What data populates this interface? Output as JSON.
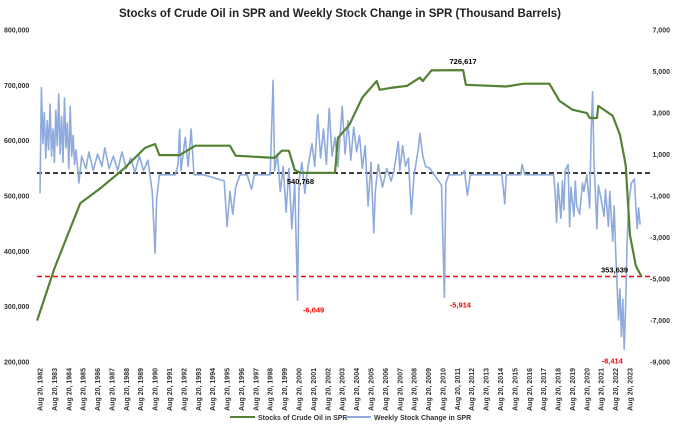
{
  "chart_data": {
    "type": "line",
    "title": "Stocks of Crude Oil in SPR and Weekly Stock Change in SPR (Thousand Barrels)",
    "xlabel": "",
    "ylabel_left": "",
    "ylabel_right": "",
    "ylim_left": [
      200000,
      800000
    ],
    "ylim_right": [
      -9000,
      7000
    ],
    "xlim": [
      1982.6,
      2024.6
    ],
    "left_ticks": [
      "800,000",
      "700,000",
      "600,000",
      "500,000",
      "400,000",
      "300,000",
      "200,000"
    ],
    "left_tick_values": [
      800000,
      700000,
      600000,
      500000,
      400000,
      300000,
      200000
    ],
    "right_ticks": [
      "7,000",
      "5,000",
      "3,000",
      "1,000",
      "-1,000",
      "-3,000",
      "-5,000",
      "-7,000",
      "-9,000"
    ],
    "right_tick_values": [
      7000,
      5000,
      3000,
      1000,
      -1000,
      -3000,
      -5000,
      -7000,
      -9000
    ],
    "x_tick_labels": [
      "Aug 20, 1982",
      "Aug 20, 1983",
      "Aug 20, 1984",
      "Aug 20, 1985",
      "Aug 20, 1986",
      "Aug 20, 1987",
      "Aug 20, 1988",
      "Aug 20, 1989",
      "Aug 20, 1990",
      "Aug 20, 1991",
      "Aug 20, 1992",
      "Aug 20, 1993",
      "Aug 20, 1994",
      "Aug 20, 1995",
      "Aug 20, 1996",
      "Aug 20, 1997",
      "Aug 20, 1998",
      "Aug 20, 1999",
      "Aug 20, 2000",
      "Aug 20, 2001",
      "Aug 20, 2002",
      "Aug 20, 2003",
      "Aug 20, 2004",
      "Aug 20, 2005",
      "Aug 20, 2006",
      "Aug 20, 2007",
      "Aug 20, 2008",
      "Aug 20, 2009",
      "Aug 20, 2010",
      "Aug 20, 2011",
      "Aug 20, 2012",
      "Aug 20, 2013",
      "Aug 20, 2014",
      "Aug 20, 2015",
      "Aug 20, 2016",
      "Aug 20, 2017",
      "Aug 20, 2018",
      "Aug 20, 2019",
      "Aug 20, 2020",
      "Aug 20, 2021",
      "Aug 20, 2022",
      "Aug 20, 2023"
    ],
    "x_tick_years": [
      1982.6,
      1983.6,
      1984.6,
      1985.6,
      1986.6,
      1987.6,
      1988.6,
      1989.6,
      1990.6,
      1991.6,
      1992.6,
      1993.6,
      1994.6,
      1995.6,
      1996.6,
      1997.6,
      1998.6,
      1999.6,
      2000.6,
      2001.6,
      2002.6,
      2003.6,
      2004.6,
      2005.6,
      2006.6,
      2007.6,
      2008.6,
      2009.6,
      2010.6,
      2011.6,
      2012.6,
      2013.6,
      2014.6,
      2015.6,
      2016.6,
      2017.6,
      2018.6,
      2019.6,
      2020.6,
      2021.6,
      2022.6,
      2023.6
    ],
    "grid": false,
    "legend_position": "bottom",
    "series": [
      {
        "name": "Stocks of Crude Oil in SPR",
        "axis": "left",
        "color": "#548235",
        "points": [
          [
            1982.4,
            274000
          ],
          [
            1983.6,
            368000
          ],
          [
            1984.5,
            427000
          ],
          [
            1985.4,
            486000
          ],
          [
            1986.8,
            513000
          ],
          [
            1988.5,
            550000
          ],
          [
            1989.9,
            586000
          ],
          [
            1990.6,
            593000
          ],
          [
            1990.9,
            573000
          ],
          [
            1992.3,
            573000
          ],
          [
            1993.4,
            590000
          ],
          [
            1995.8,
            590000
          ],
          [
            1996.2,
            572000
          ],
          [
            1998.9,
            568000
          ],
          [
            1999.4,
            581000
          ],
          [
            1999.9,
            581000
          ],
          [
            2000.3,
            546000
          ],
          [
            2000.7,
            540768
          ],
          [
            2003.1,
            541000
          ],
          [
            2003.3,
            604000
          ],
          [
            2004.1,
            628000
          ],
          [
            2005.0,
            677000
          ],
          [
            2006.0,
            707000
          ],
          [
            2006.2,
            691000
          ],
          [
            2007.1,
            695000
          ],
          [
            2008.1,
            698000
          ],
          [
            2009.0,
            713000
          ],
          [
            2009.2,
            707000
          ],
          [
            2009.8,
            726000
          ],
          [
            2012.0,
            726617
          ],
          [
            2012.2,
            700000
          ],
          [
            2015.0,
            697000
          ],
          [
            2016.2,
            702000
          ],
          [
            2018.0,
            702000
          ],
          [
            2018.7,
            671000
          ],
          [
            2019.6,
            655000
          ],
          [
            2020.6,
            649000
          ],
          [
            2020.8,
            640000
          ],
          [
            2021.3,
            640000
          ],
          [
            2021.4,
            662000
          ],
          [
            2022.4,
            644000
          ],
          [
            2022.9,
            610000
          ],
          [
            2023.3,
            555000
          ],
          [
            2023.6,
            428000
          ],
          [
            2024.0,
            374000
          ],
          [
            2024.1,
            368000
          ],
          [
            2024.4,
            353639
          ]
        ]
      },
      {
        "name": "Weekly Stock Change in SPR",
        "axis": "right",
        "color": "#8faadc",
        "points": [
          [
            1982.6,
            -900
          ],
          [
            1982.7,
            4200
          ],
          [
            1982.8,
            1500
          ],
          [
            1982.9,
            3000
          ],
          [
            1983.0,
            800
          ],
          [
            1983.1,
            2600
          ],
          [
            1983.2,
            1200
          ],
          [
            1983.3,
            3400
          ],
          [
            1983.4,
            900
          ],
          [
            1983.5,
            2200
          ],
          [
            1983.6,
            600
          ],
          [
            1983.7,
            3100
          ],
          [
            1983.8,
            1400
          ],
          [
            1983.9,
            3900
          ],
          [
            1984.0,
            1000
          ],
          [
            1984.1,
            2800
          ],
          [
            1984.2,
            600
          ],
          [
            1984.3,
            3700
          ],
          [
            1984.4,
            1300
          ],
          [
            1984.5,
            2500
          ],
          [
            1984.6,
            300
          ],
          [
            1984.7,
            3300
          ],
          [
            1984.8,
            900
          ],
          [
            1984.9,
            1900
          ],
          [
            1985.0,
            500
          ],
          [
            1985.1,
            1200
          ],
          [
            1985.3,
            -400
          ],
          [
            1985.5,
            900
          ],
          [
            1985.8,
            300
          ],
          [
            1986.0,
            1100
          ],
          [
            1986.3,
            200
          ],
          [
            1986.6,
            1000
          ],
          [
            1986.9,
            400
          ],
          [
            1987.1,
            1300
          ],
          [
            1987.4,
            300
          ],
          [
            1987.7,
            900
          ],
          [
            1988.0,
            200
          ],
          [
            1988.3,
            1100
          ],
          [
            1988.6,
            300
          ],
          [
            1988.9,
            800
          ],
          [
            1989.2,
            100
          ],
          [
            1989.5,
            900
          ],
          [
            1989.8,
            200
          ],
          [
            1990.1,
            700
          ],
          [
            1990.4,
            -800
          ],
          [
            1990.6,
            -3780
          ],
          [
            1990.7,
            -1200
          ],
          [
            1990.9,
            0
          ],
          [
            1992.0,
            0
          ],
          [
            1992.2,
            500
          ],
          [
            1992.3,
            2200
          ],
          [
            1992.4,
            200
          ],
          [
            1992.7,
            1800
          ],
          [
            1992.9,
            400
          ],
          [
            1993.1,
            2200
          ],
          [
            1993.3,
            0
          ],
          [
            1994.0,
            0
          ],
          [
            1995.4,
            -300
          ],
          [
            1995.6,
            -2500
          ],
          [
            1995.8,
            -800
          ],
          [
            1996.0,
            -1900
          ],
          [
            1996.2,
            -600
          ],
          [
            1996.5,
            0
          ],
          [
            1997.0,
            0
          ],
          [
            1997.3,
            -700
          ],
          [
            1997.5,
            0
          ],
          [
            1998.6,
            0
          ],
          [
            1998.8,
            4550
          ],
          [
            1998.9,
            200
          ],
          [
            1999.1,
            1000
          ],
          [
            1999.3,
            -800
          ],
          [
            1999.5,
            400
          ],
          [
            1999.7,
            -1800
          ],
          [
            1999.9,
            300
          ],
          [
            2000.1,
            -2600
          ],
          [
            2000.3,
            -400
          ],
          [
            2000.5,
            -6049
          ],
          [
            2000.6,
            -300
          ],
          [
            2000.8,
            600
          ],
          [
            2001.0,
            -900
          ],
          [
            2001.2,
            300
          ],
          [
            2001.5,
            1500
          ],
          [
            2001.7,
            400
          ],
          [
            2001.9,
            2900
          ],
          [
            2002.1,
            800
          ],
          [
            2002.3,
            2200
          ],
          [
            2002.5,
            500
          ],
          [
            2002.7,
            3200
          ],
          [
            2002.9,
            900
          ],
          [
            2003.1,
            1800
          ],
          [
            2003.3,
            400
          ],
          [
            2003.6,
            3300
          ],
          [
            2003.8,
            1000
          ],
          [
            2004.0,
            2600
          ],
          [
            2004.2,
            700
          ],
          [
            2004.4,
            2300
          ],
          [
            2004.6,
            1100
          ],
          [
            2004.8,
            1900
          ],
          [
            2005.0,
            300
          ],
          [
            2005.2,
            1400
          ],
          [
            2005.4,
            -1500
          ],
          [
            2005.6,
            600
          ],
          [
            2005.8,
            -2800
          ],
          [
            2005.9,
            -800
          ],
          [
            2006.1,
            500
          ],
          [
            2006.4,
            -600
          ],
          [
            2006.7,
            300
          ],
          [
            2007.0,
            -300
          ],
          [
            2007.2,
            200
          ],
          [
            2007.5,
            1600
          ],
          [
            2007.6,
            200
          ],
          [
            2007.8,
            1400
          ],
          [
            2008.0,
            400
          ],
          [
            2008.2,
            800
          ],
          [
            2008.4,
            -1900
          ],
          [
            2008.6,
            0
          ],
          [
            2008.9,
            1300
          ],
          [
            2009.0,
            2000
          ],
          [
            2009.2,
            900
          ],
          [
            2009.4,
            400
          ],
          [
            2009.7,
            300
          ],
          [
            2010.0,
            0
          ],
          [
            2010.5,
            -500
          ],
          [
            2010.7,
            -5914
          ],
          [
            2010.8,
            -400
          ],
          [
            2011.0,
            0
          ],
          [
            2011.9,
            0
          ],
          [
            2012.1,
            200
          ],
          [
            2012.3,
            -1000
          ],
          [
            2012.5,
            0
          ],
          [
            2014.7,
            0
          ],
          [
            2014.9,
            -1400
          ],
          [
            2015.0,
            0
          ],
          [
            2016.0,
            0
          ],
          [
            2016.1,
            500
          ],
          [
            2016.3,
            0
          ],
          [
            2018.3,
            0
          ],
          [
            2018.4,
            -900
          ],
          [
            2018.5,
            -2300
          ],
          [
            2018.6,
            -400
          ],
          [
            2018.8,
            -2100
          ],
          [
            2018.9,
            -300
          ],
          [
            2019.0,
            -1700
          ],
          [
            2019.1,
            200
          ],
          [
            2019.3,
            500
          ],
          [
            2019.4,
            -2500
          ],
          [
            2019.5,
            -600
          ],
          [
            2019.7,
            -2000
          ],
          [
            2019.8,
            -300
          ],
          [
            2019.9,
            -1500
          ],
          [
            2020.1,
            -1900
          ],
          [
            2020.3,
            -400
          ],
          [
            2020.4,
            -800
          ],
          [
            2020.6,
            0
          ],
          [
            2020.8,
            -1600
          ],
          [
            2020.9,
            2000
          ],
          [
            2021.0,
            4000
          ],
          [
            2021.1,
            600
          ],
          [
            2021.2,
            -1000
          ],
          [
            2021.3,
            -2600
          ],
          [
            2021.4,
            -500
          ],
          [
            2021.6,
            -1200
          ],
          [
            2021.8,
            -2000
          ],
          [
            2021.9,
            -700
          ],
          [
            2022.1,
            -2500
          ],
          [
            2022.2,
            -800
          ],
          [
            2022.4,
            -3200
          ],
          [
            2022.5,
            -1500
          ],
          [
            2022.6,
            -3600
          ],
          [
            2022.8,
            -7000
          ],
          [
            2022.9,
            -5500
          ],
          [
            2023.0,
            -7800
          ],
          [
            2023.1,
            -6000
          ],
          [
            2023.2,
            -8414
          ],
          [
            2023.3,
            -6200
          ],
          [
            2023.4,
            -3300
          ],
          [
            2023.5,
            -1400
          ],
          [
            2023.7,
            -400
          ],
          [
            2023.9,
            -200
          ],
          [
            2024.0,
            -1400
          ],
          [
            2024.1,
            -2600
          ],
          [
            2024.2,
            -1600
          ],
          [
            2024.3,
            -2400
          ]
        ]
      }
    ],
    "reference_lines": [
      {
        "axis": "left",
        "value": 540768,
        "color": "#000000",
        "style": "dashed"
      },
      {
        "axis": "left",
        "value": 353639,
        "color": "#ff0000",
        "style": "dashed"
      }
    ],
    "annotations": [
      {
        "text": "726,617",
        "x": 2012.0,
        "y": 726617,
        "axis": "left",
        "color": "#000000"
      },
      {
        "text": "540,768",
        "x": 2000.7,
        "y": 540768,
        "axis": "left",
        "color": "#000000"
      },
      {
        "text": "353,639",
        "x": 2023.5,
        "y": 353639,
        "axis": "left",
        "color": "#000000"
      },
      {
        "text": "-6,049",
        "x": 2000.5,
        "y": -6049,
        "axis": "right",
        "color": "#ff0000"
      },
      {
        "text": "-5,914",
        "x": 2010.7,
        "y": -5914,
        "axis": "right",
        "color": "#ff0000"
      },
      {
        "text": "-8,414",
        "x": 2023.2,
        "y": -8414,
        "axis": "right",
        "color": "#ff0000"
      }
    ]
  }
}
